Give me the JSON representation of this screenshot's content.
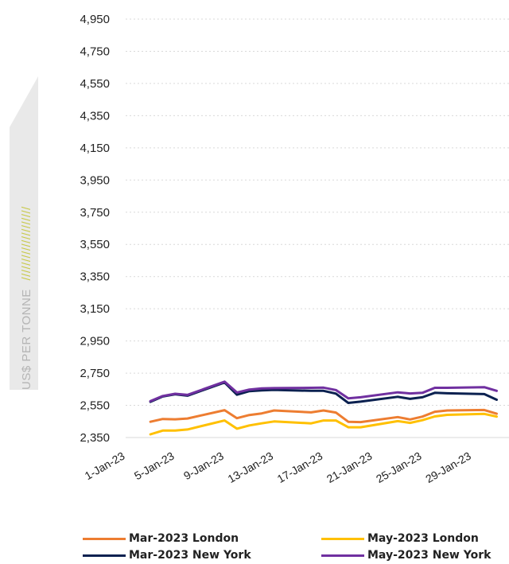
{
  "chart_data": {
    "type": "line",
    "ylabel_prefix": "US$ PER TONNE",
    "ylabel_hatch": "////////////////////",
    "yticks": [
      "4,950",
      "4,750",
      "4,550",
      "4,350",
      "4,150",
      "3,950",
      "3,750",
      "3,550",
      "3,350",
      "3,150",
      "2,950",
      "2,750",
      "2,550",
      "2,350"
    ],
    "ylim": [
      2350,
      4950
    ],
    "xticks": [
      "1-Jan-23",
      "5-Jan-23",
      "9-Jan-23",
      "13-Jan-23",
      "17-Jan-23",
      "21-Jan-23",
      "25-Jan-23",
      "29-Jan-23"
    ],
    "xlim": [
      1,
      32
    ],
    "grid": true,
    "legend_position": "bottom",
    "x": [
      3,
      4,
      5,
      6,
      9,
      10,
      11,
      12,
      13,
      16,
      17,
      18,
      19,
      20,
      23,
      24,
      25,
      26,
      27,
      30,
      31
    ],
    "series": [
      {
        "name": "Mar-2023 London",
        "color": "#ED7D31",
        "values": [
          2448,
          2465,
          2463,
          2468,
          2520,
          2470,
          2490,
          2500,
          2518,
          2506,
          2518,
          2505,
          2448,
          2446,
          2477,
          2462,
          2480,
          2510,
          2518,
          2521,
          2498
        ]
      },
      {
        "name": "May-2023 London",
        "color": "#FFC000",
        "values": [
          2370,
          2393,
          2393,
          2400,
          2456,
          2405,
          2425,
          2438,
          2450,
          2438,
          2456,
          2456,
          2414,
          2414,
          2452,
          2441,
          2458,
          2481,
          2491,
          2497,
          2480
        ]
      },
      {
        "name": "Mar-2023 New York",
        "color": "#0B2150",
        "values": [
          2572,
          2605,
          2619,
          2610,
          2692,
          2616,
          2638,
          2643,
          2646,
          2640,
          2640,
          2623,
          2565,
          2573,
          2603,
          2590,
          2600,
          2628,
          2625,
          2620,
          2585
        ]
      },
      {
        "name": "May-2023 New York",
        "color": "#7030A0",
        "values": [
          2576,
          2608,
          2622,
          2615,
          2697,
          2630,
          2648,
          2655,
          2657,
          2659,
          2660,
          2645,
          2593,
          2600,
          2631,
          2624,
          2628,
          2659,
          2659,
          2663,
          2640
        ]
      }
    ]
  }
}
